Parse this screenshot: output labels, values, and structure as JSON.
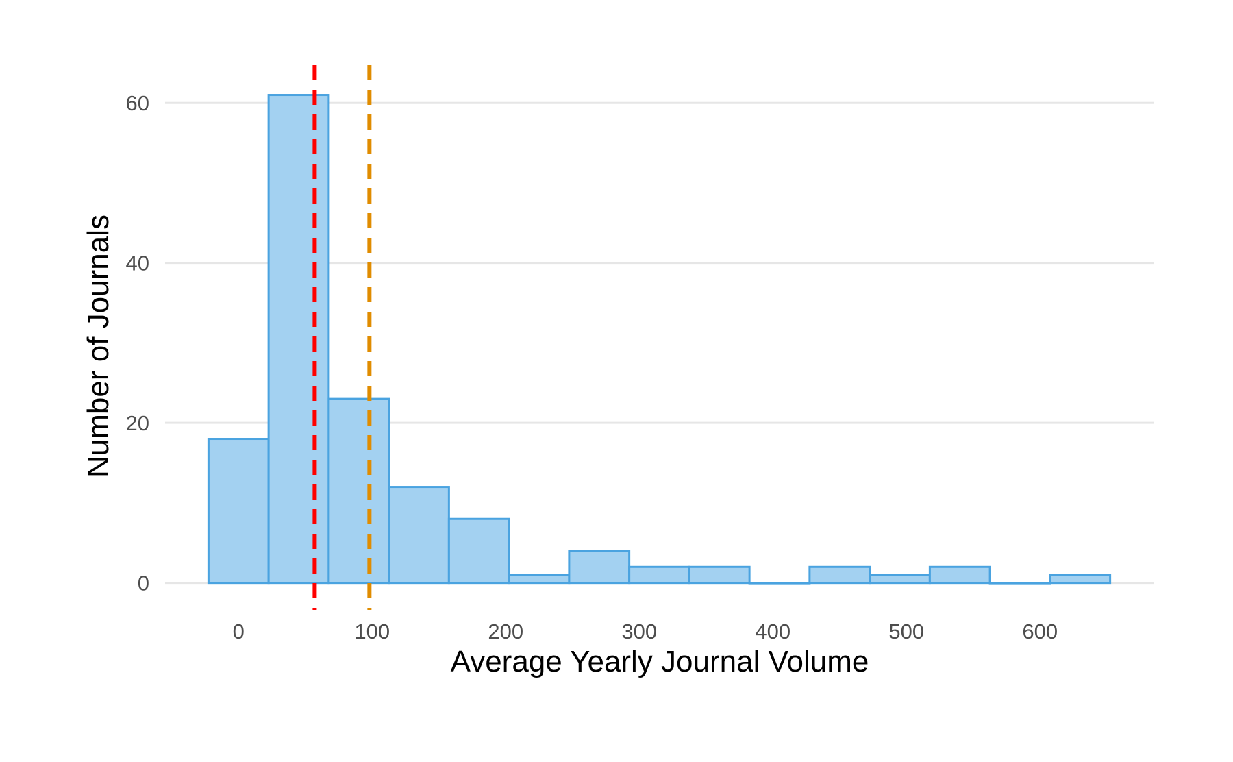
{
  "chart_data": {
    "type": "bar",
    "subtype": "histogram",
    "title": "",
    "xlabel": "Average Yearly Journal Volume",
    "ylabel": "Number of Journals",
    "bin_width": 45,
    "bins": [
      {
        "start": -22.5,
        "end": 22.5,
        "count": 18
      },
      {
        "start": 22.5,
        "end": 67.5,
        "count": 61
      },
      {
        "start": 67.5,
        "end": 112.5,
        "count": 23
      },
      {
        "start": 112.5,
        "end": 157.5,
        "count": 12
      },
      {
        "start": 157.5,
        "end": 202.5,
        "count": 8
      },
      {
        "start": 202.5,
        "end": 247.5,
        "count": 1
      },
      {
        "start": 247.5,
        "end": 292.5,
        "count": 4
      },
      {
        "start": 292.5,
        "end": 337.5,
        "count": 2
      },
      {
        "start": 337.5,
        "end": 382.5,
        "count": 2
      },
      {
        "start": 382.5,
        "end": 427.5,
        "count": 0
      },
      {
        "start": 427.5,
        "end": 472.5,
        "count": 2
      },
      {
        "start": 472.5,
        "end": 517.5,
        "count": 1
      },
      {
        "start": 517.5,
        "end": 562.5,
        "count": 2
      },
      {
        "start": 562.5,
        "end": 607.5,
        "count": 0
      },
      {
        "start": 607.5,
        "end": 652.5,
        "count": 1
      }
    ],
    "x_ticks": [
      0,
      100,
      200,
      300,
      400,
      500,
      600
    ],
    "y_ticks": [
      0,
      20,
      40,
      60
    ],
    "xlim": [
      -55,
      685
    ],
    "ylim": [
      -3.2,
      64.3
    ],
    "grid": "horizontal",
    "reference_lines": [
      {
        "x": 57,
        "color": "#ff0000",
        "style": "dashed"
      },
      {
        "x": 98,
        "color": "#e08c00",
        "style": "dashed"
      }
    ],
    "colors": {
      "bar_fill": "#a3d1f1",
      "bar_stroke": "#4aa3e0"
    }
  }
}
